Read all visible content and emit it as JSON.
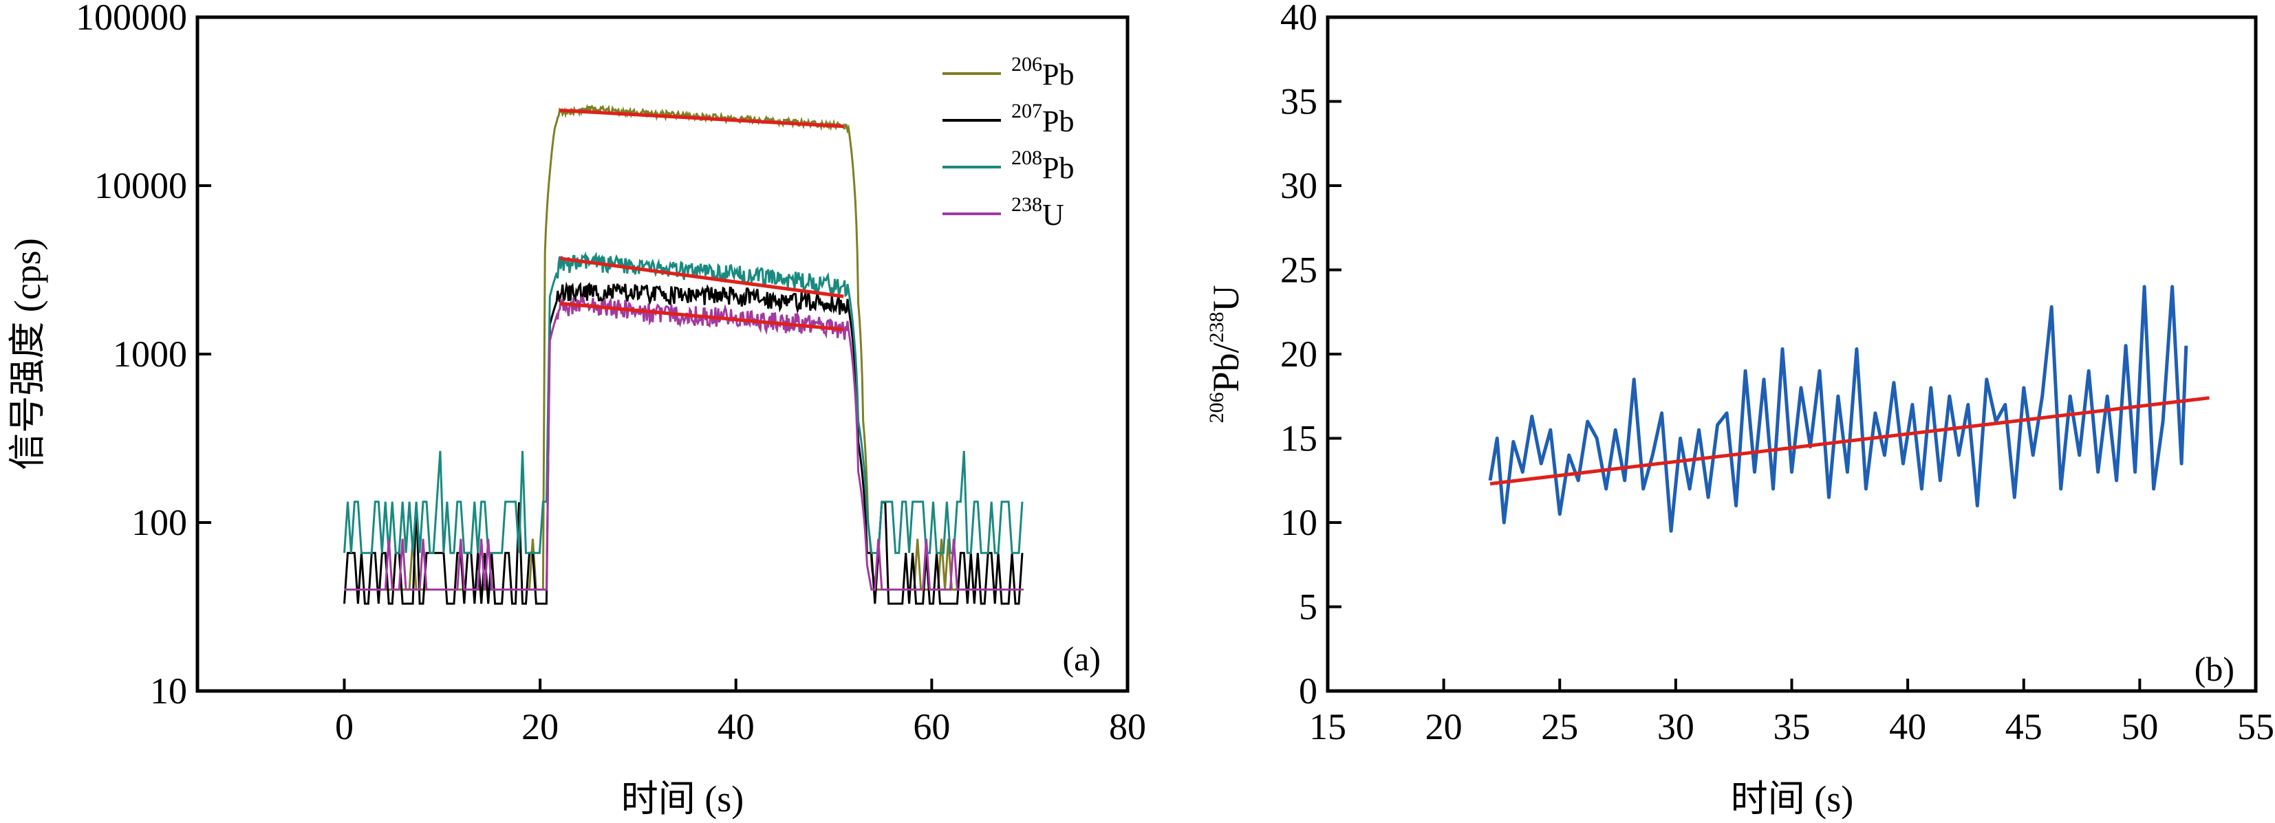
{
  "chart_data": [
    {
      "panel": "a",
      "type": "line",
      "panel_label": "(a)",
      "xlabel": "时间 (s)",
      "ylabel": "信号强度 (cps)",
      "xlim": [
        -15,
        80
      ],
      "ylim": [
        10,
        100000
      ],
      "yscale": "log",
      "xticks": [
        0,
        20,
        40,
        60,
        80
      ],
      "xtick_labels": [
        "0",
        "20",
        "40",
        "60",
        "80"
      ],
      "yticks": [
        10,
        100,
        1000,
        10000,
        100000
      ],
      "ytick_labels": [
        "10",
        "100",
        "1000",
        "10000",
        "100000"
      ],
      "grid": false,
      "legend_position": "top-right",
      "series": [
        {
          "name": "206Pb",
          "mass": "206",
          "element": "Pb",
          "color": "#7f7f26",
          "x": [
            20.5,
            21.0,
            21.5,
            22.0,
            25.0,
            30.0,
            35.0,
            40.0,
            45.0,
            50.0,
            51.5,
            52.0,
            52.5,
            53.0,
            53.5,
            54.0
          ],
          "y": [
            4000,
            12000,
            22000,
            27000,
            28500,
            27000,
            26000,
            25000,
            24000,
            23000,
            22000,
            12000,
            2000,
            400,
            100,
            40
          ]
        },
        {
          "name": "207Pb",
          "mass": "207",
          "element": "Pb",
          "color": "#000000",
          "x": [
            21.0,
            22.0,
            25.0,
            30.0,
            35.0,
            40.0,
            45.0,
            50.0,
            51.5,
            52.5,
            53.5
          ],
          "y": [
            1500,
            2300,
            2350,
            2300,
            2250,
            2200,
            2100,
            2000,
            1900,
            300,
            40
          ]
        },
        {
          "name": "208Pb",
          "mass": "208",
          "element": "Pb",
          "color": "#1a8a80",
          "x": [
            21.0,
            22.0,
            25.0,
            30.0,
            35.0,
            40.0,
            45.0,
            50.0,
            51.5,
            52.5,
            53.5
          ],
          "y": [
            2200,
            3400,
            3500,
            3300,
            3100,
            3000,
            2800,
            2600,
            2400,
            400,
            80
          ]
        },
        {
          "name": "238U",
          "mass": "238",
          "element": "U",
          "color": "#a23aa0",
          "x": [
            21.0,
            22.0,
            25.0,
            30.0,
            35.0,
            40.0,
            45.0,
            50.0,
            51.5,
            52.5,
            53.5
          ],
          "y": [
            1200,
            1900,
            1950,
            1800,
            1700,
            1650,
            1550,
            1450,
            1400,
            200,
            40
          ]
        }
      ],
      "fit_lines": [
        {
          "series": "206Pb",
          "color": "#e0201a",
          "x": [
            22,
            51
          ],
          "y": [
            28000,
            22500
          ]
        },
        {
          "series": "208Pb",
          "color": "#e0201a",
          "x": [
            22,
            51
          ],
          "y": [
            3700,
            2200
          ]
        },
        {
          "series": "238U",
          "color": "#e0201a",
          "x": [
            22,
            51
          ],
          "y": [
            2000,
            1400
          ]
        }
      ]
    },
    {
      "panel": "b",
      "type": "line",
      "panel_label": "(b)",
      "xlabel": "时间 (s)",
      "ylabel": "206Pb/238U",
      "ylabel_parts": {
        "m1": "206",
        "e1": "Pb/",
        "m2": "238",
        "e2": "U"
      },
      "xlim": [
        15,
        55
      ],
      "ylim": [
        0,
        40
      ],
      "xticks": [
        15,
        20,
        25,
        30,
        35,
        40,
        45,
        50,
        55
      ],
      "xtick_labels": [
        "15",
        "20",
        "25",
        "30",
        "35",
        "40",
        "45",
        "50",
        "55"
      ],
      "yticks": [
        0,
        5,
        10,
        15,
        20,
        25,
        30,
        35,
        40
      ],
      "ytick_labels": [
        "0",
        "5",
        "10",
        "15",
        "20",
        "25",
        "30",
        "35",
        "40"
      ],
      "grid": false,
      "series": [
        {
          "color": "#1f5fb4",
          "x": [
            22.0,
            22.3,
            22.6,
            23.0,
            23.4,
            23.8,
            24.2,
            24.6,
            25.0,
            25.4,
            25.8,
            26.2,
            26.6,
            27.0,
            27.4,
            27.8,
            28.2,
            28.6,
            29.0,
            29.4,
            29.8,
            30.2,
            30.6,
            31.0,
            31.4,
            31.8,
            32.2,
            32.6,
            33.0,
            33.4,
            33.8,
            34.2,
            34.6,
            35.0,
            35.4,
            35.8,
            36.2,
            36.6,
            37.0,
            37.4,
            37.8,
            38.2,
            38.6,
            39.0,
            39.4,
            39.8,
            40.2,
            40.6,
            41.0,
            41.4,
            41.8,
            42.2,
            42.6,
            43.0,
            43.4,
            43.8,
            44.2,
            44.6,
            45.0,
            45.4,
            45.8,
            46.2,
            46.6,
            47.0,
            47.4,
            47.8,
            48.2,
            48.6,
            49.0,
            49.4,
            49.8,
            50.2,
            50.6,
            51.0,
            51.4,
            51.8,
            52.0
          ],
          "y": [
            12.5,
            15.0,
            10.0,
            14.8,
            13.0,
            16.3,
            13.5,
            15.5,
            10.5,
            14.0,
            12.5,
            16.0,
            15.0,
            12.0,
            15.5,
            12.5,
            18.5,
            12.0,
            14.0,
            16.5,
            9.5,
            15.0,
            12.0,
            15.5,
            11.5,
            15.8,
            16.5,
            11.0,
            19.0,
            13.0,
            18.5,
            12.0,
            20.3,
            13.0,
            18.0,
            14.5,
            19.0,
            11.5,
            17.5,
            13.0,
            20.3,
            12.0,
            16.5,
            14.0,
            18.3,
            13.5,
            17.0,
            12.0,
            18.0,
            12.5,
            17.5,
            14.0,
            17.0,
            11.0,
            18.5,
            16.0,
            17.0,
            11.5,
            18.0,
            14.0,
            17.5,
            22.8,
            12.0,
            17.5,
            14.0,
            19.0,
            13.0,
            17.5,
            12.5,
            20.5,
            13.0,
            24.0,
            12.0,
            16.0,
            24.0,
            13.5,
            20.5
          ]
        }
      ],
      "fit_lines": [
        {
          "color": "#e0201a",
          "x": [
            22,
            53
          ],
          "y": [
            12.3,
            17.4
          ]
        }
      ]
    }
  ]
}
